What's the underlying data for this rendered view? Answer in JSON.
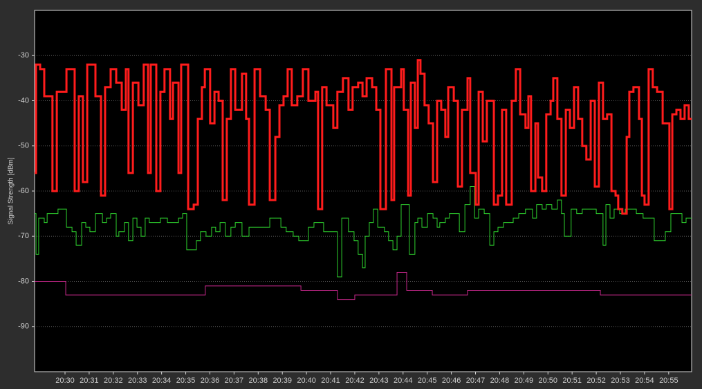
{
  "chart_data": {
    "type": "step-line",
    "y_axis_label": "Signal Strength [dBm]",
    "ylim": [
      -100,
      -20
    ],
    "yticks": [
      -30,
      -40,
      -50,
      -60,
      -70,
      -80,
      -90
    ],
    "grid": true,
    "xlim": [
      -1.26,
      25.95
    ],
    "xticks": [
      {
        "value": 0,
        "label": "20:30"
      },
      {
        "value": 1,
        "label": "20:31"
      },
      {
        "value": 2,
        "label": "20:32"
      },
      {
        "value": 3,
        "label": "20:33"
      },
      {
        "value": 4,
        "label": "20:34"
      },
      {
        "value": 5,
        "label": "20:35"
      },
      {
        "value": 6,
        "label": "20:36"
      },
      {
        "value": 7,
        "label": "20:37"
      },
      {
        "value": 8,
        "label": "20:38"
      },
      {
        "value": 9,
        "label": "20:39"
      },
      {
        "value": 10,
        "label": "20:40"
      },
      {
        "value": 11,
        "label": "20:41"
      },
      {
        "value": 12,
        "label": "20:42"
      },
      {
        "value": 13,
        "label": "20:43"
      },
      {
        "value": 14,
        "label": "20:44"
      },
      {
        "value": 15,
        "label": "20:45"
      },
      {
        "value": 16,
        "label": "20:46"
      },
      {
        "value": 17,
        "label": "20:47"
      },
      {
        "value": 18,
        "label": "20:48"
      },
      {
        "value": 19,
        "label": "20:49"
      },
      {
        "value": 20,
        "label": "20:50"
      },
      {
        "value": 21,
        "label": "20:51"
      },
      {
        "value": 22,
        "label": "20:52"
      },
      {
        "value": 23,
        "label": "20:53"
      },
      {
        "value": 24,
        "label": "20:54"
      },
      {
        "value": 25,
        "label": "20:55"
      }
    ],
    "series": [
      {
        "color": "#ff1c1c",
        "width": 3,
        "x": [
          -1.26,
          -1.2,
          -1.03,
          -0.86,
          -0.52,
          -0.34,
          0.06,
          0.4,
          0.57,
          0.74,
          0.92,
          1.26,
          1.49,
          1.66,
          1.89,
          2.12,
          2.35,
          2.52,
          2.63,
          2.81,
          3.04,
          3.26,
          3.44,
          3.55,
          3.78,
          3.95,
          4.12,
          4.35,
          4.47,
          4.7,
          4.81,
          5.04,
          5.1,
          5.33,
          5.5,
          5.67,
          5.79,
          6.01,
          6.19,
          6.36,
          6.53,
          6.7,
          6.87,
          7.05,
          7.33,
          7.5,
          7.62,
          7.85,
          8.08,
          8.31,
          8.48,
          8.71,
          8.88,
          9.05,
          9.22,
          9.39,
          9.62,
          9.85,
          10.08,
          10.37,
          10.48,
          10.65,
          10.83,
          11.11,
          11.28,
          11.51,
          11.74,
          11.91,
          12.14,
          12.32,
          12.49,
          12.72,
          12.89,
          13.06,
          13.29,
          13.52,
          13.63,
          13.92,
          14.03,
          14.21,
          14.32,
          14.49,
          14.61,
          14.72,
          14.89,
          15.06,
          15.24,
          15.41,
          15.58,
          15.75,
          15.87,
          16.1,
          16.27,
          16.44,
          16.67,
          16.78,
          17.01,
          17.13,
          17.3,
          17.47,
          17.64,
          17.76,
          17.93,
          18.1,
          18.27,
          18.5,
          18.67,
          18.85,
          19.07,
          19.19,
          19.3,
          19.48,
          19.59,
          19.76,
          19.93,
          20.11,
          20.22,
          20.39,
          20.56,
          20.74,
          20.91,
          21.08,
          21.25,
          21.42,
          21.59,
          21.77,
          21.94,
          22.11,
          22.28,
          22.45,
          22.63,
          22.8,
          22.91,
          23.08,
          23.26,
          23.37,
          23.54,
          23.77,
          23.89,
          24.0,
          24.17,
          24.34,
          24.52,
          24.75,
          25.03,
          25.15,
          25.32,
          25.49,
          25.66,
          25.83,
          25.95
        ],
        "values": [
          -56,
          -32,
          -33,
          -39,
          -60,
          -38,
          -33,
          -60,
          -39,
          -58,
          -32,
          -39,
          -61,
          -37,
          -33,
          -36,
          -42,
          -33,
          -56,
          -36,
          -41,
          -32,
          -56,
          -32,
          -60,
          -38,
          -33,
          -44,
          -36,
          -56,
          -32,
          -32,
          -64,
          -63,
          -44,
          -37,
          -33,
          -45,
          -38,
          -40,
          -62,
          -44,
          -33,
          -42,
          -34,
          -44,
          -63,
          -33,
          -39,
          -42,
          -62,
          -48,
          -41,
          -39,
          -33,
          -41,
          -39,
          -33,
          -40,
          -38,
          -64,
          -37,
          -41,
          -46,
          -38,
          -35,
          -42,
          -37,
          -36,
          -39,
          -35,
          -37,
          -42,
          -64,
          -33,
          -62,
          -37,
          -33,
          -42,
          -61,
          -36,
          -46,
          -31,
          -34,
          -41,
          -45,
          -58,
          -40,
          -42,
          -48,
          -37,
          -40,
          -59,
          -42,
          -35,
          -56,
          -63,
          -38,
          -49,
          -40,
          -40,
          -63,
          -61,
          -42,
          -63,
          -40,
          -33,
          -43,
          -46,
          -39,
          -60,
          -45,
          -57,
          -60,
          -43,
          -40,
          -35,
          -44,
          -61,
          -42,
          -46,
          -37,
          -44,
          -50,
          -53,
          -40,
          -59,
          -36,
          -44,
          -43,
          -60,
          -61,
          -64,
          -65,
          -48,
          -38,
          -37,
          -44,
          -61,
          -63,
          -33,
          -37,
          -38,
          -45,
          -64,
          -43,
          -42,
          -44,
          -41,
          -44,
          -44
        ]
      },
      {
        "color": "#2ed12e",
        "width": 1,
        "x": [
          -1.26,
          -1.2,
          -1.09,
          -0.86,
          -0.74,
          -0.29,
          0.06,
          0.29,
          0.46,
          0.69,
          0.86,
          1.03,
          1.26,
          1.55,
          1.72,
          1.89,
          2.12,
          2.23,
          2.46,
          2.63,
          2.81,
          2.98,
          3.15,
          3.32,
          3.49,
          3.95,
          4.24,
          4.7,
          4.87,
          5.04,
          5.44,
          5.61,
          5.84,
          6.07,
          6.24,
          6.42,
          6.64,
          6.87,
          7.05,
          7.33,
          7.62,
          8.25,
          8.48,
          8.94,
          9.16,
          9.45,
          9.68,
          10.08,
          10.31,
          10.71,
          11.28,
          11.46,
          11.74,
          11.97,
          12.14,
          12.32,
          12.43,
          12.6,
          12.77,
          12.95,
          13.23,
          13.4,
          13.58,
          13.75,
          13.92,
          14.26,
          14.49,
          14.61,
          14.78,
          15.01,
          15.24,
          15.41,
          15.52,
          15.75,
          15.92,
          16.33,
          16.56,
          16.78,
          16.96,
          17.13,
          17.36,
          17.59,
          17.76,
          17.93,
          18.16,
          18.56,
          18.79,
          19.07,
          19.36,
          19.53,
          19.76,
          19.93,
          20.16,
          20.39,
          20.56,
          20.68,
          20.96,
          21.19,
          21.42,
          22.0,
          22.28,
          22.4,
          22.57,
          22.74,
          22.97,
          23.2,
          23.66,
          23.94,
          24.4,
          24.86,
          25.09,
          25.55,
          25.72,
          25.95
        ],
        "values": [
          -65,
          -74,
          -66,
          -67,
          -65,
          -64,
          -68,
          -69,
          -72,
          -67,
          -68,
          -69,
          -65,
          -67,
          -66,
          -65,
          -70,
          -69,
          -67,
          -71,
          -66,
          -68,
          -70,
          -66,
          -67,
          -66,
          -67,
          -66,
          -65,
          -73,
          -71,
          -69,
          -70,
          -68,
          -69,
          -67,
          -70,
          -68,
          -67,
          -70,
          -68,
          -68,
          -66,
          -68,
          -69,
          -70,
          -71,
          -68,
          -67,
          -69,
          -79,
          -66,
          -69,
          -71,
          -74,
          -77,
          -70,
          -67,
          -64,
          -68,
          -69,
          -71,
          -73,
          -70,
          -63,
          -74,
          -67,
          -66,
          -68,
          -65,
          -66,
          -68,
          -67,
          -66,
          -65,
          -69,
          -63,
          -59,
          -66,
          -64,
          -65,
          -72,
          -69,
          -68,
          -67,
          -66,
          -65,
          -64,
          -66,
          -63,
          -64,
          -63,
          -64,
          -62,
          -65,
          -70,
          -64,
          -65,
          -64,
          -65,
          -72,
          -63,
          -66,
          -64,
          -65,
          -64,
          -65,
          -66,
          -71,
          -69,
          -65,
          -67,
          -66,
          -66
        ]
      },
      {
        "color": "#c8288c",
        "width": 1,
        "x": [
          -1.26,
          0.03,
          5.81,
          9.77,
          11.28,
          12.0,
          13.75,
          14.15,
          15.21,
          16.67,
          22.17,
          25.95
        ],
        "values": [
          -80,
          -83,
          -81,
          -82,
          -84,
          -83,
          -78,
          -82,
          -83,
          -82,
          -83,
          -83
        ]
      }
    ]
  }
}
